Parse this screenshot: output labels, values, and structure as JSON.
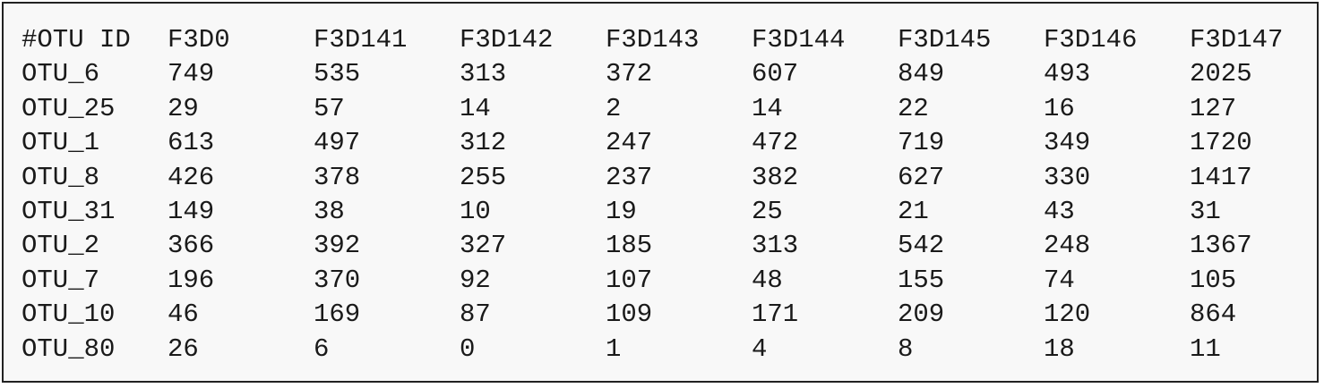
{
  "table": {
    "headers": [
      "#OTU ID",
      "F3D0",
      "F3D141",
      "F3D142",
      "F3D143",
      "F3D144",
      "F3D145",
      "F3D146",
      "F3D147"
    ],
    "rows": [
      [
        "OTU_6",
        "749",
        "535",
        "313",
        "372",
        "607",
        "849",
        "493",
        "2025"
      ],
      [
        "OTU_25",
        "29",
        "57",
        "14",
        "2",
        "14",
        "22",
        "16",
        "127"
      ],
      [
        "OTU_1",
        "613",
        "497",
        "312",
        "247",
        "472",
        "719",
        "349",
        "1720"
      ],
      [
        "OTU_8",
        "426",
        "378",
        "255",
        "237",
        "382",
        "627",
        "330",
        "1417"
      ],
      [
        "OTU_31",
        "149",
        "38",
        "10",
        "19",
        "25",
        "21",
        "43",
        "31"
      ],
      [
        "OTU_2",
        "366",
        "392",
        "327",
        "185",
        "313",
        "542",
        "248",
        "1367"
      ],
      [
        "OTU_7",
        "196",
        "370",
        "92",
        "107",
        "48",
        "155",
        "74",
        "105"
      ],
      [
        "OTU_10",
        "46",
        "169",
        "87",
        "109",
        "171",
        "209",
        "120",
        "864"
      ],
      [
        "OTU_80",
        "26",
        "6",
        "0",
        "1",
        "4",
        "8",
        "18",
        "11"
      ]
    ]
  }
}
